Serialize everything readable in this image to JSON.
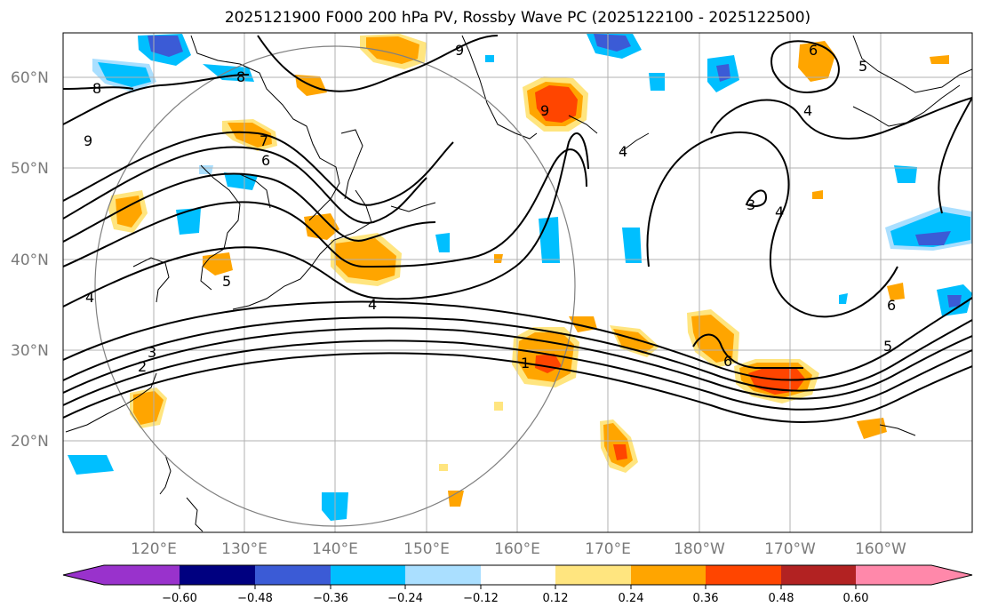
{
  "title": "2025121900 F000 200 hPa PV, Rossby Wave PC (2025122100 - 2025122500)",
  "map": {
    "lat_labels": [
      "60°N",
      "50°N",
      "40°N",
      "30°N",
      "20°N"
    ],
    "lon_labels": [
      "120°E",
      "130°E",
      "140°E",
      "150°E",
      "160°E",
      "170°E",
      "180°W",
      "170°W",
      "160°W"
    ],
    "contour_labels": [
      "8",
      "9",
      "8",
      "7",
      "6",
      "9",
      "4",
      "5",
      "4",
      "3",
      "2",
      "4",
      "1",
      "6",
      "5",
      "6",
      "4",
      "4",
      "3",
      "9",
      "5",
      "6"
    ]
  },
  "colorbar": {
    "colors": [
      "#9932cc",
      "#000080",
      "#3b5bd6",
      "#00bfff",
      "#aadfff",
      "#ffffff",
      "#ffe57f",
      "#ffa500",
      "#ff4500",
      "#b22222",
      "#ff88aa"
    ],
    "tick_labels": [
      "−0.60",
      "−0.48",
      "−0.36",
      "−0.24",
      "−0.12",
      "0.12",
      "0.24",
      "0.36",
      "0.48",
      "0.60"
    ]
  }
}
